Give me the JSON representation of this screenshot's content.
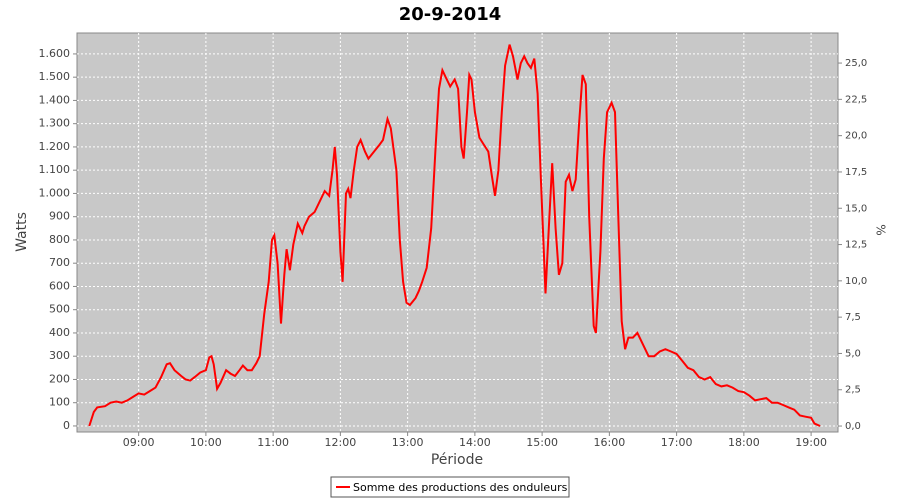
{
  "chart_data": {
    "type": "line",
    "title": "20-9-2014",
    "xlabel": "Période",
    "ylabel": "Watts",
    "y2label": "%",
    "x": [
      496,
      500,
      503,
      510,
      515,
      520,
      525,
      530,
      535,
      540,
      545,
      550,
      555,
      560,
      565,
      568,
      572,
      578,
      582,
      586,
      590,
      595,
      600,
      603,
      605,
      607,
      610,
      613,
      618,
      622,
      626,
      630,
      633,
      637,
      641,
      645,
      648,
      652,
      656,
      659,
      661,
      664,
      667,
      670,
      672,
      675,
      678,
      682,
      686,
      688,
      692,
      697,
      702,
      706,
      710,
      713,
      715,
      717,
      720,
      722,
      725,
      727,
      729,
      732,
      735,
      738,
      742,
      745,
      750,
      755,
      758,
      762,
      765,
      770,
      773,
      776,
      779,
      782,
      787,
      790,
      793,
      797,
      801,
      805,
      808,
      811,
      814,
      818,
      822,
      825,
      828,
      830,
      833,
      835,
      837,
      840,
      844,
      848,
      852,
      855,
      858,
      861,
      864,
      867,
      871,
      874,
      878,
      881,
      884,
      887,
      890,
      893,
      896,
      899,
      903,
      906,
      909,
      912,
      915,
      918,
      921,
      924,
      927,
      930,
      933,
      936,
      939,
      942,
      946,
      948,
      952,
      955,
      958,
      962,
      965,
      968,
      971,
      974,
      977,
      981,
      985,
      990,
      995,
      1000,
      1005,
      1010,
      1015,
      1020,
      1025,
      1030,
      1035,
      1040,
      1045,
      1050,
      1055,
      1060,
      1065,
      1070,
      1075,
      1080,
      1085,
      1090,
      1095,
      1100,
      1105,
      1110,
      1115,
      1120,
      1125,
      1130,
      1135,
      1140,
      1143,
      1148
    ],
    "series": [
      {
        "name": "Somme des productions des onduleurs",
        "color": "#ff0000",
        "values": [
          0,
          60,
          80,
          85,
          100,
          105,
          100,
          110,
          125,
          140,
          135,
          150,
          165,
          210,
          265,
          270,
          240,
          215,
          200,
          195,
          210,
          230,
          240,
          295,
          300,
          265,
          160,
          185,
          240,
          225,
          215,
          240,
          260,
          240,
          240,
          270,
          300,
          480,
          620,
          800,
          820,
          700,
          440,
          650,
          760,
          670,
          780,
          870,
          830,
          860,
          900,
          920,
          970,
          1010,
          990,
          1100,
          1200,
          1080,
          750,
          620,
          1000,
          1020,
          980,
          1100,
          1200,
          1230,
          1180,
          1150,
          1180,
          1210,
          1230,
          1320,
          1280,
          1100,
          800,
          620,
          530,
          520,
          550,
          580,
          620,
          680,
          850,
          1200,
          1450,
          1530,
          1500,
          1460,
          1490,
          1450,
          1200,
          1150,
          1350,
          1510,
          1490,
          1350,
          1240,
          1210,
          1180,
          1080,
          990,
          1100,
          1350,
          1550,
          1640,
          1590,
          1490,
          1560,
          1590,
          1560,
          1540,
          1580,
          1430,
          1050,
          570,
          850,
          1130,
          850,
          650,
          700,
          1050,
          1080,
          1010,
          1060,
          1300,
          1510,
          1470,
          900,
          430,
          400,
          750,
          1150,
          1350,
          1390,
          1350,
          900,
          450,
          330,
          380,
          380,
          400,
          350,
          300,
          300,
          320,
          330,
          320,
          310,
          280,
          250,
          240,
          210,
          200,
          210,
          180,
          170,
          175,
          165,
          150,
          145,
          130,
          110,
          115,
          120,
          100,
          100,
          90,
          80,
          70,
          45,
          40,
          35,
          10,
          0
        ]
      }
    ],
    "xlim": [
      485,
      1164
    ],
    "xticks": [
      {
        "value": 540,
        "label": "09:00"
      },
      {
        "value": 600,
        "label": "10:00"
      },
      {
        "value": 660,
        "label": "11:00"
      },
      {
        "value": 720,
        "label": "12:00"
      },
      {
        "value": 780,
        "label": "13:00"
      },
      {
        "value": 840,
        "label": "14:00"
      },
      {
        "value": 900,
        "label": "15:00"
      },
      {
        "value": 960,
        "label": "16:00"
      },
      {
        "value": 1020,
        "label": "17:00"
      },
      {
        "value": 1080,
        "label": "18:00"
      },
      {
        "value": 1140,
        "label": "19:00"
      }
    ],
    "ylim": [
      -26,
      1690
    ],
    "yticks": [
      0,
      100,
      200,
      300,
      400,
      500,
      600,
      700,
      800,
      900,
      {
        "value": 1000,
        "label": "1.000"
      },
      {
        "value": 1100,
        "label": "1.100"
      },
      {
        "value": 1200,
        "label": "1.200"
      },
      {
        "value": 1300,
        "label": "1.300"
      },
      {
        "value": 1400,
        "label": "1.400"
      },
      {
        "value": 1500,
        "label": "1.500"
      },
      {
        "value": 1600,
        "label": "1.600"
      }
    ],
    "y2lim": [
      -0.41,
      27.07
    ],
    "y2ticks": [
      {
        "value": 0,
        "label": "0,0"
      },
      {
        "value": 2.5,
        "label": "2,5"
      },
      {
        "value": 5,
        "label": "5,0"
      },
      {
        "value": 7.5,
        "label": "7,5"
      },
      {
        "value": 10,
        "label": "10,0"
      },
      {
        "value": 12.5,
        "label": "12,5"
      },
      {
        "value": 15,
        "label": "15,0"
      },
      {
        "value": 17.5,
        "label": "17,5"
      },
      {
        "value": 20,
        "label": "20,0"
      },
      {
        "value": 22.5,
        "label": "22,5"
      },
      {
        "value": 25,
        "label": "25,0"
      }
    ],
    "grid": true
  }
}
